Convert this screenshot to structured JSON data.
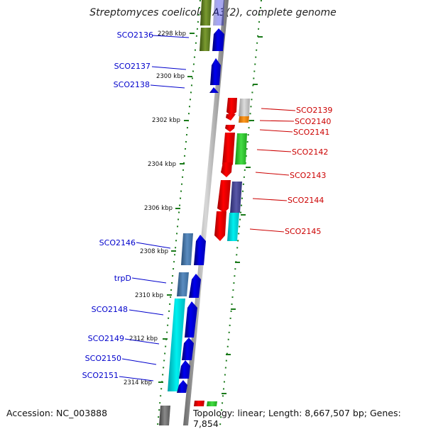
{
  "title": "Streptomyces coelicolor A3(2), complete genome",
  "accession": "Accession: NC_003888",
  "topology": "Topology: linear; Length: 8,667,507 bp; Genes: 7,854",
  "colors": {
    "left_labels": "#0000cc",
    "right_labels": "#cc0000",
    "tick_marks": "#1a7a1a",
    "backbone": "#8a8a8a"
  },
  "scale_labels": [
    "2298 kbp",
    "2300 kbp",
    "2302 kbp",
    "2304 kbp",
    "2306 kbp",
    "2308 kbp",
    "2310 kbp",
    "2312 kbp",
    "2314 kbp"
  ],
  "left_genes": [
    "SCO2136",
    "SCO2137",
    "SCO2138",
    "SCO2146",
    "trpD",
    "SCO2148",
    "SCO2149",
    "SCO2150",
    "SCO2151"
  ],
  "right_genes": [
    "SCO2139",
    "SCO2140",
    "SCO2141",
    "SCO2142",
    "SCO2143",
    "SCO2144",
    "SCO2145"
  ]
}
